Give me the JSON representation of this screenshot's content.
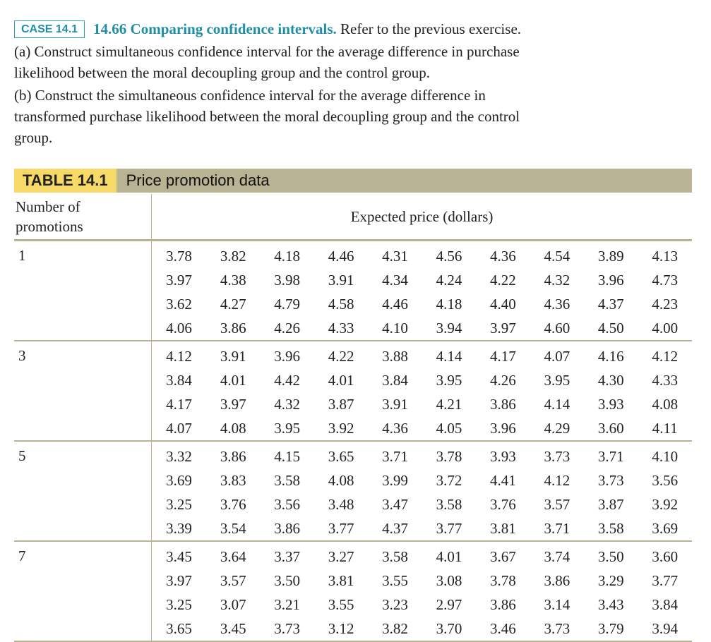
{
  "exercise": {
    "case_label": "CASE 14.1",
    "title": "14.66 Comparing confidence intervals.",
    "intro": "Refer to the previous exercise.",
    "part_a_line1": "(a) Construct simultaneous confidence interval for the average difference in purchase",
    "part_a_line2": "likelihood between the moral decoupling group and the control group.",
    "part_b_line1": "(b) Construct the simultaneous confidence interval for the average difference in",
    "part_b_line2": "transformed purchase likelihood between the moral decoupling group and the control",
    "part_b_line3": "group."
  },
  "table": {
    "tag": "TABLE 14.1",
    "caption": "Price promotion data",
    "col1_header_line1": "Number of",
    "col1_header_line2": "promotions",
    "main_header": "Expected price (dollars)",
    "groups": [
      {
        "label": "1",
        "rows": [
          [
            "3.78",
            "3.82",
            "4.18",
            "4.46",
            "4.31",
            "4.56",
            "4.36",
            "4.54",
            "3.89",
            "4.13"
          ],
          [
            "3.97",
            "4.38",
            "3.98",
            "3.91",
            "4.34",
            "4.24",
            "4.22",
            "4.32",
            "3.96",
            "4.73"
          ],
          [
            "3.62",
            "4.27",
            "4.79",
            "4.58",
            "4.46",
            "4.18",
            "4.40",
            "4.36",
            "4.37",
            "4.23"
          ],
          [
            "4.06",
            "3.86",
            "4.26",
            "4.33",
            "4.10",
            "3.94",
            "3.97",
            "4.60",
            "4.50",
            "4.00"
          ]
        ]
      },
      {
        "label": "3",
        "rows": [
          [
            "4.12",
            "3.91",
            "3.96",
            "4.22",
            "3.88",
            "4.14",
            "4.17",
            "4.07",
            "4.16",
            "4.12"
          ],
          [
            "3.84",
            "4.01",
            "4.42",
            "4.01",
            "3.84",
            "3.95",
            "4.26",
            "3.95",
            "4.30",
            "4.33"
          ],
          [
            "4.17",
            "3.97",
            "4.32",
            "3.87",
            "3.91",
            "4.21",
            "3.86",
            "4.14",
            "3.93",
            "4.08"
          ],
          [
            "4.07",
            "4.08",
            "3.95",
            "3.92",
            "4.36",
            "4.05",
            "3.96",
            "4.29",
            "3.60",
            "4.11"
          ]
        ]
      },
      {
        "label": "5",
        "rows": [
          [
            "3.32",
            "3.86",
            "4.15",
            "3.65",
            "3.71",
            "3.78",
            "3.93",
            "3.73",
            "3.71",
            "4.10"
          ],
          [
            "3.69",
            "3.83",
            "3.58",
            "4.08",
            "3.99",
            "3.72",
            "4.41",
            "4.12",
            "3.73",
            "3.56"
          ],
          [
            "3.25",
            "3.76",
            "3.56",
            "3.48",
            "3.47",
            "3.58",
            "3.76",
            "3.57",
            "3.87",
            "3.92"
          ],
          [
            "3.39",
            "3.54",
            "3.86",
            "3.77",
            "4.37",
            "3.77",
            "3.81",
            "3.71",
            "3.58",
            "3.69"
          ]
        ]
      },
      {
        "label": "7",
        "rows": [
          [
            "3.45",
            "3.64",
            "3.37",
            "3.27",
            "3.58",
            "4.01",
            "3.67",
            "3.74",
            "3.50",
            "3.60"
          ],
          [
            "3.97",
            "3.57",
            "3.50",
            "3.81",
            "3.55",
            "3.08",
            "3.78",
            "3.86",
            "3.29",
            "3.77"
          ],
          [
            "3.25",
            "3.07",
            "3.21",
            "3.55",
            "3.23",
            "2.97",
            "3.86",
            "3.14",
            "3.43",
            "3.84"
          ],
          [
            "3.65",
            "3.45",
            "3.73",
            "3.12",
            "3.82",
            "3.70",
            "3.46",
            "3.73",
            "3.79",
            "3.94"
          ]
        ]
      }
    ]
  }
}
